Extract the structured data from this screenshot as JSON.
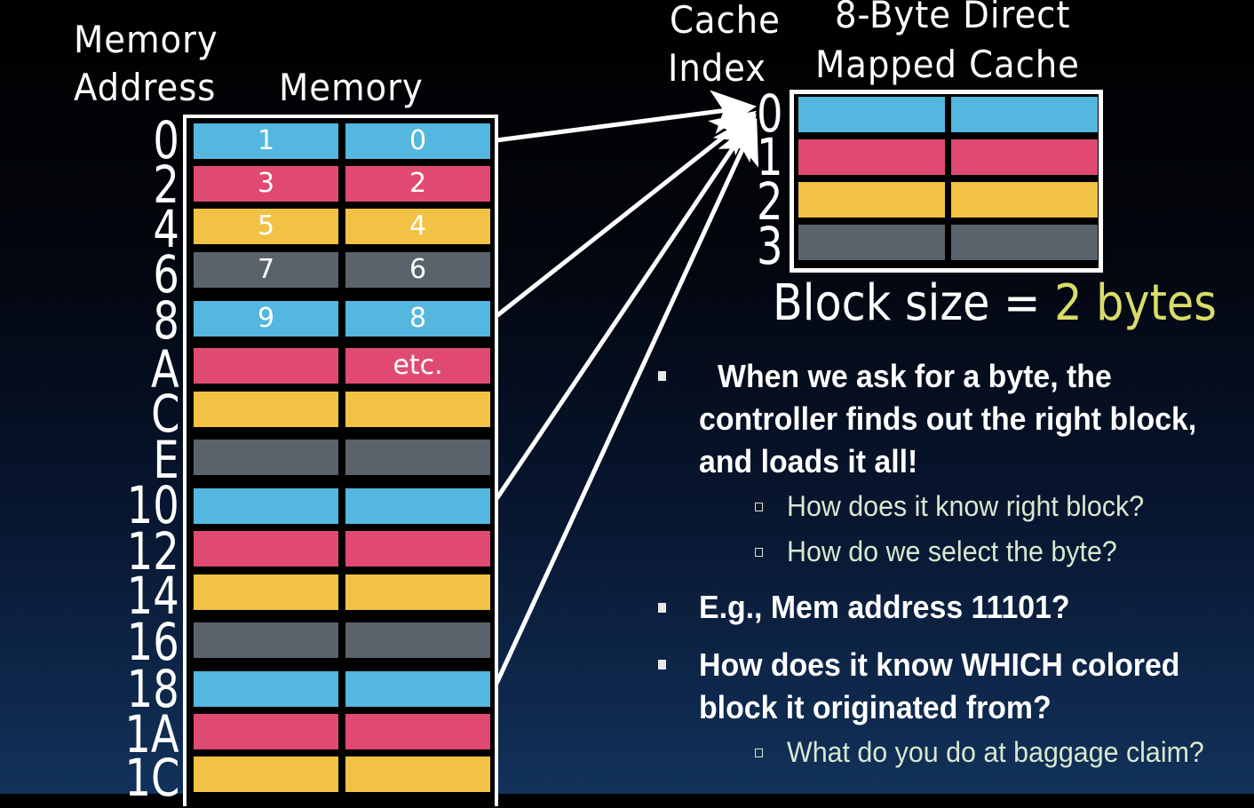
{
  "headers": {
    "memory_address": [
      "Memory",
      "Address"
    ],
    "memory": "Memory",
    "cache_index": [
      "Cache",
      "Index"
    ],
    "cache_title": [
      "8-Byte Direct",
      "Mapped Cache"
    ]
  },
  "addresses": [
    "0",
    "2",
    "4",
    "6",
    "8",
    "A",
    "C",
    "E",
    "10",
    "12",
    "14",
    "16",
    "18",
    "1A",
    "1C"
  ],
  "memory_rows": [
    {
      "color": "blue",
      "left": "1",
      "right": "0"
    },
    {
      "color": "red",
      "left": "3",
      "right": "2"
    },
    {
      "color": "yellow",
      "left": "5",
      "right": "4"
    },
    {
      "color": "gray",
      "left": "7",
      "right": "6"
    },
    {
      "color": "blue",
      "left": "9",
      "right": "8"
    },
    {
      "color": "red",
      "left": "",
      "right": "etc."
    },
    {
      "color": "yellow",
      "left": "",
      "right": ""
    },
    {
      "color": "gray",
      "left": "",
      "right": ""
    },
    {
      "color": "blue",
      "left": "",
      "right": ""
    },
    {
      "color": "red",
      "left": "",
      "right": ""
    },
    {
      "color": "yellow",
      "left": "",
      "right": ""
    },
    {
      "color": "gray",
      "left": "",
      "right": ""
    },
    {
      "color": "blue",
      "left": "",
      "right": ""
    },
    {
      "color": "red",
      "left": "",
      "right": ""
    },
    {
      "color": "yellow",
      "left": "",
      "right": ""
    }
  ],
  "cache_indices": [
    "0",
    "1",
    "2",
    "3"
  ],
  "cache_rows": [
    "blue",
    "red",
    "yellow",
    "gray"
  ],
  "colors": {
    "blue": "#54b7df",
    "red": "#e04a72",
    "yellow": "#f2c245",
    "gray": "#5a636c",
    "highlight": "#d9dc6a",
    "sub_text": "#d8e8d0"
  },
  "block_size": {
    "label": "Block size =",
    "value": "2 bytes"
  },
  "bullets": {
    "b1": [
      "When we ask for a byte, the",
      "controller finds out the right block,",
      "and loads it all!"
    ],
    "b1_subs": [
      "How does it know right block?",
      "How do we select the byte?"
    ],
    "b2": "E.g., Mem address 11101?",
    "b3": [
      "How does it know WHICH colored",
      "block it originated from?"
    ],
    "b3_subs": [
      "What do you do at baggage claim?"
    ]
  }
}
